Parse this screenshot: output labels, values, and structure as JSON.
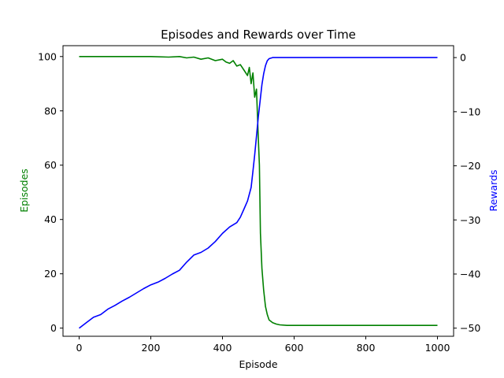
{
  "chart_data": {
    "type": "line",
    "title": "Episodes and Rewards over Time",
    "xlabel": "Episode",
    "ylabel_left": "Episodes",
    "ylabel_right": "Rewards",
    "xlim": [
      -45,
      1045
    ],
    "ylim_left": [
      -3,
      104
    ],
    "ylim_right": [
      -51.5,
      2.2
    ],
    "xticks": [
      0,
      200,
      400,
      600,
      800,
      1000
    ],
    "yticks_left": [
      0,
      20,
      40,
      60,
      80,
      100
    ],
    "yticks_right": [
      0,
      -10,
      -20,
      -30,
      -40,
      -50
    ],
    "grid": false,
    "colors": {
      "left_axis": "#008000",
      "right_axis": "#0000ff"
    },
    "series": [
      {
        "name": "Episodes",
        "axis": "left",
        "color": "#008000",
        "x": [
          0,
          50,
          100,
          150,
          200,
          250,
          280,
          300,
          320,
          340,
          360,
          380,
          400,
          410,
          420,
          430,
          440,
          450,
          460,
          470,
          475,
          480,
          485,
          490,
          495,
          500,
          503,
          506,
          510,
          515,
          520,
          525,
          530,
          540,
          550,
          560,
          580,
          600,
          700,
          800,
          900,
          1000
        ],
        "y": [
          100,
          100,
          100,
          100,
          100,
          99.8,
          100,
          99.5,
          99.8,
          99,
          99.5,
          98.5,
          99,
          98,
          97.5,
          98.5,
          96.5,
          97,
          95,
          93,
          96,
          90,
          94,
          85,
          88,
          70,
          60,
          35,
          22,
          14,
          8,
          5,
          3,
          2,
          1.5,
          1.2,
          1,
          1,
          1,
          1,
          1,
          1
        ]
      },
      {
        "name": "Rewards",
        "axis": "right",
        "color": "#0000ff",
        "x": [
          0,
          20,
          40,
          60,
          80,
          100,
          120,
          140,
          160,
          180,
          200,
          220,
          240,
          260,
          280,
          300,
          320,
          340,
          360,
          380,
          400,
          420,
          440,
          450,
          460,
          470,
          480,
          485,
          490,
          495,
          500,
          505,
          510,
          515,
          520,
          525,
          530,
          540,
          550,
          560,
          600,
          700,
          800,
          900,
          1000
        ],
        "y": [
          -50,
          -49,
          -48,
          -47.5,
          -46.5,
          -45.8,
          -45,
          -44.3,
          -43.5,
          -42.7,
          -42,
          -41.5,
          -40.8,
          -40,
          -39.3,
          -37.8,
          -36.5,
          -36,
          -35.2,
          -34,
          -32.5,
          -31.3,
          -30.5,
          -29.5,
          -28,
          -26.5,
          -24,
          -21,
          -18,
          -14.5,
          -11,
          -8,
          -5,
          -3,
          -1.5,
          -0.6,
          -0.2,
          0,
          0,
          0,
          0,
          0,
          0,
          0,
          0
        ]
      }
    ]
  }
}
